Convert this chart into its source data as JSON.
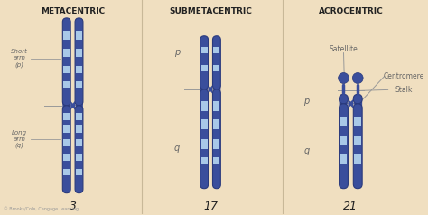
{
  "bg_color": "#f0dfc0",
  "chrom_dark": "#3a4e9c",
  "chrom_light": "#a8c8e8",
  "chrom_edge": "#2a3a7c",
  "text_dark": "#222222",
  "label_gray": "#666666",
  "line_color": "#999999",
  "title1": "METACENTRIC",
  "title2": "SUBMETACENTRIC",
  "title3": "ACROCENTRIC",
  "num1": "3",
  "num2": "17",
  "num3": "21",
  "copyright": "© Brooks/Cole, Cengage Learning",
  "divider_color": "#c8b898"
}
